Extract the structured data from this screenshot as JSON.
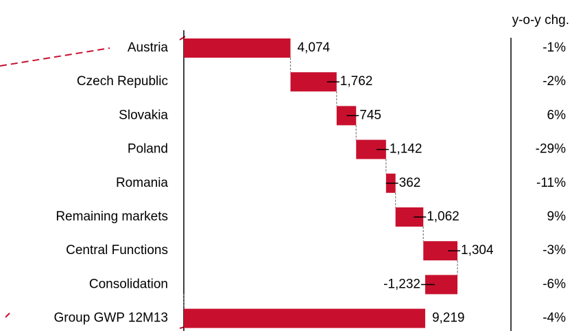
{
  "chart_data": {
    "type": "waterfall",
    "categories": [
      "Austria",
      "Czech Republic",
      "Slovakia",
      "Poland",
      "Romania",
      "Remaining markets",
      "Central Functions",
      "Consolidation",
      "Group GWP 12M13"
    ],
    "values": [
      4074,
      1762,
      745,
      1142,
      362,
      1062,
      1304,
      -1232,
      9219
    ],
    "value_labels": [
      "4,074",
      "1,762",
      "745",
      "1,142",
      "362",
      "1,062",
      "1,304",
      "-1,232",
      "9,219"
    ],
    "total_index": 8,
    "color": "#c8102e",
    "yoy": {
      "title": "y-o-y chg.",
      "values": [
        -1,
        -2,
        6,
        -29,
        -11,
        9,
        -3,
        -6,
        -4
      ],
      "value_labels": [
        "-1%",
        "-2%",
        "6%",
        "-29%",
        "-11%",
        "9%",
        "-3%",
        "-6%",
        "-4%"
      ]
    }
  }
}
